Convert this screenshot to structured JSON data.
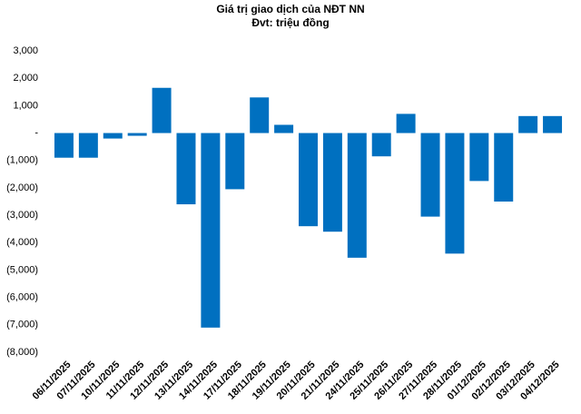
{
  "chart_data": {
    "type": "bar",
    "title": "Giá trị giao dịch của NĐT NN",
    "subtitle": "Đvt: triệu đồng",
    "categories": [
      "06/11/2025",
      "07/11/2025",
      "10/11/2025",
      "11/11/2025",
      "12/11/2025",
      "13/11/2025",
      "14/11/2025",
      "17/11/2025",
      "18/11/2025",
      "19/11/2025",
      "20/11/2025",
      "21/11/2025",
      "24/11/2025",
      "25/11/2025",
      "26/11/2025",
      "27/11/2025",
      "28/11/2025",
      "01/12/2025",
      "02/12/2025",
      "03/12/2025",
      "04/12/2025"
    ],
    "values": [
      -900,
      -900,
      -200,
      -100,
      1650,
      -2600,
      -7100,
      -2050,
      1300,
      300,
      -3400,
      -3600,
      -4550,
      -850,
      700,
      -3050,
      -4400,
      -1750,
      -2500,
      620,
      620
    ],
    "color": "#0070c0",
    "ylim": [
      -8000,
      3000
    ],
    "yticks": [
      {
        "value": 3000,
        "label": "3,000"
      },
      {
        "value": 2000,
        "label": "2,000"
      },
      {
        "value": 1000,
        "label": "1,000"
      },
      {
        "value": 0,
        "label": "-"
      },
      {
        "value": -1000,
        "label": "(1,000)"
      },
      {
        "value": -2000,
        "label": "(2,000)"
      },
      {
        "value": -3000,
        "label": "(3,000)"
      },
      {
        "value": -4000,
        "label": "(4,000)"
      },
      {
        "value": -5000,
        "label": "(5,000)"
      },
      {
        "value": -6000,
        "label": "(6,000)"
      },
      {
        "value": -7000,
        "label": "(7,000)"
      },
      {
        "value": -8000,
        "label": "(8,000)"
      }
    ],
    "grid": false
  }
}
